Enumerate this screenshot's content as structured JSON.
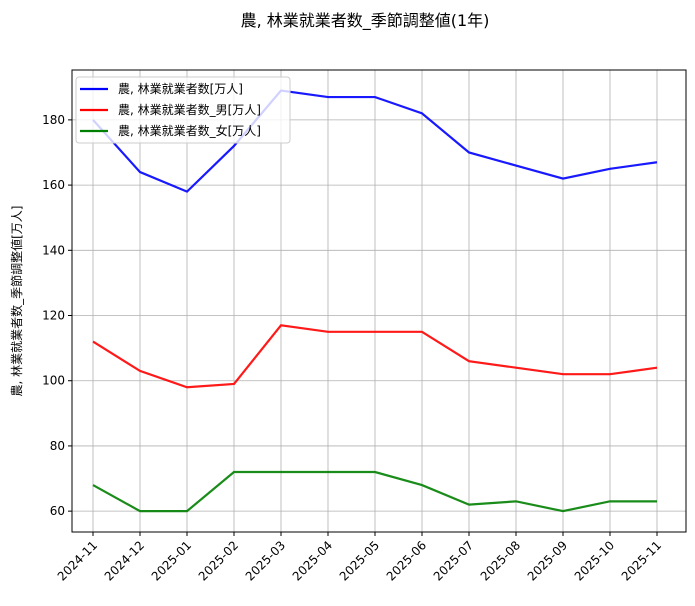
{
  "chart_data": {
    "type": "line",
    "title": "農, 林業就業者数_季節調整値(1年)",
    "xlabel": "",
    "ylabel": "農, 林業就業者数_季節調整値[万人]",
    "x": [
      "2024-11",
      "2024-12",
      "2025-01",
      "2025-02",
      "2025-03",
      "2025-04",
      "2025-05",
      "2025-06",
      "2025-07",
      "2025-08",
      "2025-09",
      "2025-10",
      "2025-11"
    ],
    "ylim": [
      53.6,
      195.3
    ],
    "yticks": [
      60,
      80,
      100,
      120,
      140,
      160,
      180
    ],
    "grid": true,
    "legend_position": "top-left",
    "series": [
      {
        "name": "農, 林業就業者数[万人]",
        "color": "#0000ff",
        "values": [
          180,
          164,
          158,
          172,
          189,
          187,
          187,
          182,
          170,
          166,
          162,
          165,
          167
        ]
      },
      {
        "name": "農, 林業就業者数_男[万人]",
        "color": "#ff0000",
        "values": [
          112,
          103,
          98,
          99,
          117,
          115,
          115,
          115,
          106,
          104,
          102,
          102,
          104
        ]
      },
      {
        "name": "農, 林業就業者数_女[万人]",
        "color": "#008000",
        "values": [
          68,
          60,
          60,
          72,
          72,
          72,
          72,
          68,
          62,
          63,
          60,
          63,
          63
        ]
      }
    ]
  }
}
